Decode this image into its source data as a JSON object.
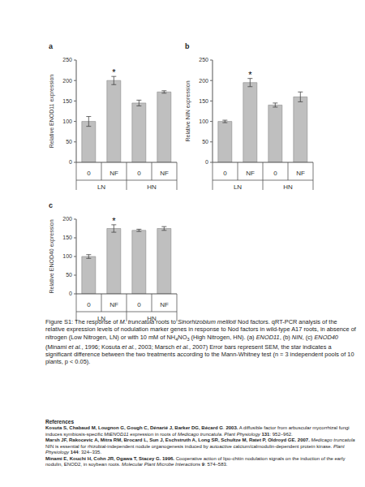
{
  "chart_data": [
    {
      "type": "bar",
      "panel": "a",
      "y_label": "Relative ENOD11 expression",
      "categories": [
        "0",
        "NF",
        "0",
        "NF"
      ],
      "groups": [
        "LN",
        "HN"
      ],
      "values": [
        100,
        200,
        145,
        172
      ],
      "errors": [
        12,
        10,
        7,
        3
      ],
      "significance": [
        null,
        "*",
        null,
        null
      ],
      "color": "#bfbfbf",
      "ylim": [
        0,
        250
      ],
      "yticks": [
        0,
        50,
        100,
        150,
        200,
        250
      ]
    },
    {
      "type": "bar",
      "panel": "b",
      "y_label": "Relative NIN expression",
      "categories": [
        "0",
        "NF",
        "0",
        "NF"
      ],
      "groups": [
        "LN",
        "HN"
      ],
      "values": [
        100,
        195,
        140,
        160
      ],
      "errors": [
        3,
        10,
        5,
        12
      ],
      "significance": [
        null,
        "*",
        null,
        null
      ],
      "color": "#bfbfbf",
      "ylim": [
        0,
        250
      ],
      "yticks": [
        0,
        50,
        100,
        150,
        200,
        250
      ]
    },
    {
      "type": "bar",
      "panel": "c",
      "y_label": "Relative ENOD40 expression",
      "categories": [
        "0",
        "NF",
        "0",
        "NF"
      ],
      "groups": [
        "LN",
        "HN"
      ],
      "values": [
        100,
        175,
        170,
        175
      ],
      "errors": [
        5,
        10,
        3,
        5
      ],
      "significance": [
        null,
        "*",
        null,
        null
      ],
      "color": "#bfbfbf",
      "ylim": [
        0,
        200
      ],
      "yticks": [
        0,
        50,
        100,
        150,
        200
      ]
    }
  ],
  "caption": [
    {
      "text": "Figure S1: The response of "
    },
    {
      "text": "M. truncatula",
      "italic": true
    },
    {
      "text": " roots to "
    },
    {
      "text": "Sinorhizobium meliloti",
      "italic": true
    },
    {
      "text": " Nod factors. qRT-PCR analysis of the relative expression levels of nodulation marker genes in response to Nod factors in wild-type A17 roots, in absence of nitrogen (Low Nitrogen, LN) or with 10 mM of NH"
    },
    {
      "text": "4",
      "sub": true
    },
    {
      "text": "NO"
    },
    {
      "text": "3",
      "sub": true
    },
    {
      "text": " (High Nitrogen, HN). (a) "
    },
    {
      "text": "ENOD11",
      "italic": true
    },
    {
      "text": ", (b) "
    },
    {
      "text": "NIN",
      "italic": true
    },
    {
      "text": ", (c) "
    },
    {
      "text": "ENOD40",
      "italic": true
    },
    {
      "text": " (Minami "
    },
    {
      "text": "et al.",
      "italic": true
    },
    {
      "text": ", 1996; Kosuta "
    },
    {
      "text": "et al.",
      "italic": true
    },
    {
      "text": ", 2003; Marsch "
    },
    {
      "text": "et al.",
      "italic": true
    },
    {
      "text": ", 2007) Error bars represent SEM, the star indicates a significant difference between the two treatments according to the Mann-Whitney test (n = 3 independent pools of 10 plants, p < 0.05)."
    }
  ],
  "references_title": "References",
  "references": [
    [
      {
        "text": "Kosuta S, Chabaud M, Lougnon G, Gough C, Dénarié J, Barker DG, Bécard G",
        "bold": true
      },
      {
        "text": ". "
      },
      {
        "text": "2003.",
        "bold": true
      },
      {
        "text": " A diffusible factor from arbuscular mycorrhizal fungi induces symbiosis-specific "
      },
      {
        "text": "MtENOD11",
        "italic": true
      },
      {
        "text": " expression in roots of "
      },
      {
        "text": "Medicago truncatula",
        "italic": true
      },
      {
        "text": ". "
      },
      {
        "text": "Plant Physiology",
        "italic": true
      },
      {
        "text": " "
      },
      {
        "text": "131",
        "bold": true
      },
      {
        "text": ": 952–962."
      }
    ],
    [
      {
        "text": "Marsh JF, Rakocevic A, Mitra RM, Brocard L, Sun J, Eschstruth A, Long SR, Schultze M, Ratet P, Oldroyd GE. 2007.",
        "bold": true
      },
      {
        "text": " "
      },
      {
        "text": "Medicago truncatula",
        "italic": true
      },
      {
        "text": " NIN is essential for rhizobial-independent nodule organogenesis induced by autoactive calcium/calmodulin-dependent protein kinase. "
      },
      {
        "text": "Plant Physiology",
        "italic": true
      },
      {
        "text": " "
      },
      {
        "text": "144",
        "bold": true
      },
      {
        "text": ": 324–335."
      }
    ],
    [
      {
        "text": "Minami E, Kouchi H, Cohn JR, Ogawa T, Stacey G. 1996.",
        "bold": true
      },
      {
        "text": " Cooperative action of lipo-chitin nodulation signals on the induction of the early nodulin, ENOD2, in soybean roots. "
      },
      {
        "text": "Molecular Plant Microbe Interactions",
        "italic": true
      },
      {
        "text": " "
      },
      {
        "text": "9",
        "bold": true
      },
      {
        "text": ": 574–583."
      }
    ]
  ]
}
